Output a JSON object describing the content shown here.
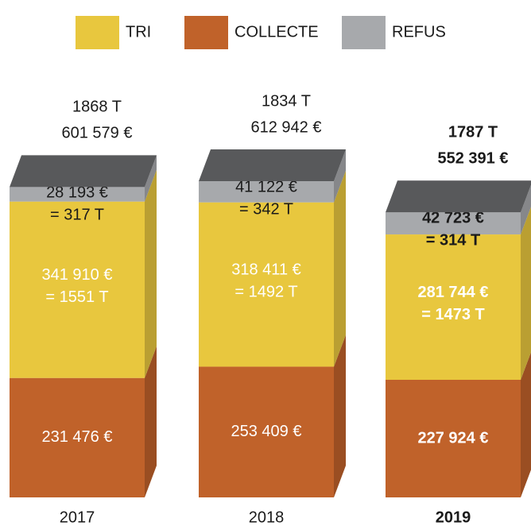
{
  "chart_data": {
    "type": "bar",
    "stacked": true,
    "categories": [
      "2017",
      "2018",
      "2019"
    ],
    "series": [
      {
        "name": "TRI",
        "color": "#e8c73e",
        "values": [
          341910,
          318411,
          281744
        ],
        "value_labels": [
          "341 910  €",
          "318 411  €",
          "281 744  €"
        ],
        "tonnes": [
          1551,
          1492,
          1473
        ],
        "tonnes_labels": [
          "= 1551 T",
          "= 1492 T",
          "= 1473 T"
        ]
      },
      {
        "name": "COLLECTE",
        "color": "#c0622a",
        "values": [
          231476,
          253409,
          227924
        ],
        "value_labels": [
          "231 476  €",
          "253 409  €",
          "227 924  €"
        ]
      },
      {
        "name": "REFUS",
        "color": "#a7a9ac",
        "values": [
          28193,
          41122,
          42723
        ],
        "value_labels": [
          "28 193 €",
          "41 122 €",
          "42 723 €"
        ],
        "tonnes": [
          317,
          342,
          314
        ],
        "tonnes_labels": [
          "= 317 T",
          "= 342 T",
          "= 314 T"
        ]
      }
    ],
    "totals": [
      601579,
      612942,
      552391
    ],
    "total_labels": [
      "601 579 €",
      "612 942 €",
      "552 391 €"
    ],
    "total_tonnes": [
      1868,
      1834,
      1787
    ],
    "total_tonnes_labels": [
      "1868 T",
      "1834 T",
      "1787 T"
    ]
  }
}
